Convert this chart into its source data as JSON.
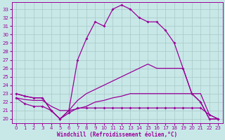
{
  "bg_color": "#c8e8e8",
  "grid_color": "#a8c8c8",
  "line_color": "#990099",
  "xlabel": "Windchill (Refroidissement éolien,°C)",
  "x_ticks": [
    0,
    1,
    2,
    3,
    4,
    5,
    6,
    7,
    8,
    9,
    10,
    11,
    12,
    13,
    14,
    15,
    16,
    17,
    18,
    19,
    20,
    21,
    22,
    23
  ],
  "y_ticks": [
    20,
    21,
    22,
    23,
    24,
    25,
    26,
    27,
    28,
    29,
    30,
    31,
    32,
    33
  ],
  "ylim": [
    19.5,
    33.8
  ],
  "xlim": [
    -0.5,
    23.5
  ],
  "line1_y": [
    23.0,
    22.7,
    22.5,
    22.5,
    21.0,
    20.0,
    21.0,
    27.0,
    29.5,
    31.5,
    31.0,
    33.0,
    33.5,
    33.0,
    32.0,
    31.5,
    31.5,
    30.5,
    29.0,
    26.0,
    23.0,
    22.0,
    20.0,
    20.0
  ],
  "line2_y": [
    23.0,
    22.7,
    22.5,
    22.5,
    21.0,
    20.0,
    21.0,
    22.2,
    23.0,
    23.5,
    24.0,
    24.5,
    25.0,
    25.5,
    26.0,
    26.5,
    26.0,
    26.0,
    26.0,
    26.0,
    23.0,
    22.0,
    20.0,
    20.0
  ],
  "line3_y": [
    22.5,
    22.3,
    22.2,
    22.2,
    21.5,
    21.0,
    21.0,
    21.2,
    21.5,
    22.0,
    22.2,
    22.5,
    22.7,
    23.0,
    23.0,
    23.0,
    23.0,
    23.0,
    23.0,
    23.0,
    23.0,
    23.0,
    20.5,
    20.0
  ],
  "line4_y": [
    22.5,
    21.8,
    21.5,
    21.5,
    21.0,
    20.0,
    20.7,
    21.3,
    21.3,
    21.3,
    21.3,
    21.3,
    21.3,
    21.3,
    21.3,
    21.3,
    21.3,
    21.3,
    21.3,
    21.3,
    21.3,
    21.3,
    20.5,
    20.0
  ]
}
